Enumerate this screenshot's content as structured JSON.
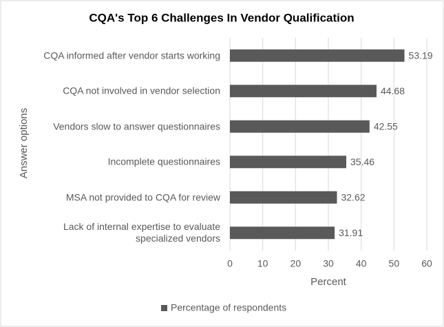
{
  "chart_data": {
    "type": "barh",
    "title": "CQA's Top 6 Challenges In Vendor Qualification",
    "x_label": "Percent",
    "y_label": "Answer options",
    "categories": [
      "CQA informed after vendor starts working",
      "CQA not involved in vendor selection",
      "Vendors slow to answer questionnaires",
      "Incomplete questionnaires",
      "MSA not provided to CQA for review",
      "Lack of internal expertise to evaluate specialized vendors"
    ],
    "series": [
      {
        "name": "Percentage of respondents",
        "color": "#595959",
        "values": [
          53.19,
          44.68,
          42.55,
          35.46,
          32.62,
          31.91
        ]
      }
    ],
    "xlim": [
      0,
      60
    ],
    "xticks": [
      0,
      10,
      20,
      30,
      40,
      50,
      60
    ],
    "grid": true,
    "legend": "bottom"
  }
}
